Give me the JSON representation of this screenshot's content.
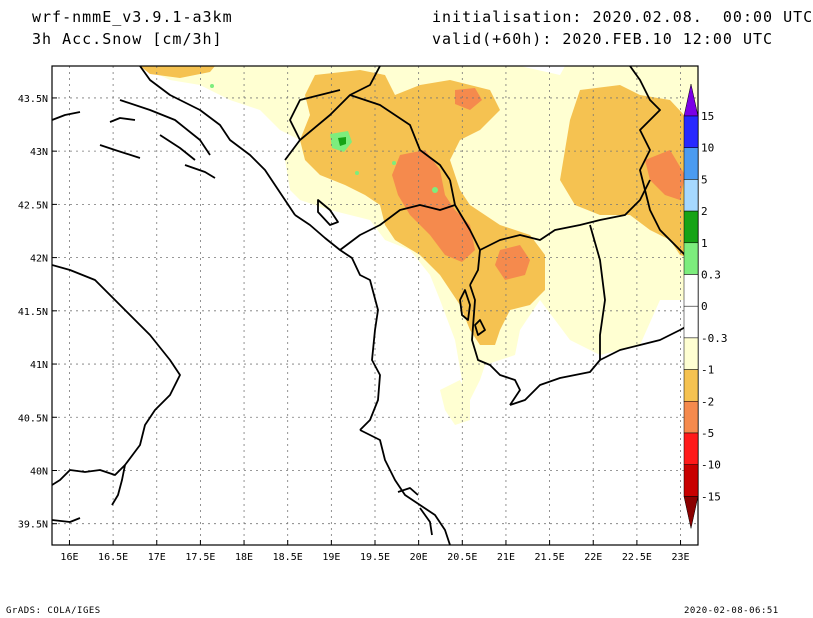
{
  "header": {
    "model": "wrf-nmmE_v3.9.1-a3km",
    "field": "3h Acc.Snow [cm/3h]",
    "init": "initialisation: 2020.02.08.  00:00 UTC",
    "valid": "valid(+60h): 2020.FEB.10 12:00 UTC"
  },
  "footer": {
    "left": "GrADS: COLA/IGES",
    "right": "2020-02-08-06:51"
  },
  "map": {
    "lon_range": [
      15.8,
      23.2
    ],
    "lat_range": [
      39.3,
      43.8
    ],
    "lon_ticks": [
      "16E",
      "16.5E",
      "17E",
      "17.5E",
      "18E",
      "18.5E",
      "19E",
      "19.5E",
      "20E",
      "20.5E",
      "21E",
      "21.5E",
      "22E",
      "22.5E",
      "23E"
    ],
    "lat_ticks": [
      "39.5N",
      "40N",
      "40.5N",
      "41N",
      "41.5N",
      "42N",
      "42.5N",
      "43N",
      "43.5N"
    ],
    "grid": "dotted"
  },
  "colorbar": {
    "labels": [
      "15",
      "10",
      "5",
      "2",
      "1",
      "0.3",
      "0",
      "-0.3",
      "-1",
      "-2",
      "-5",
      "-10",
      "-15"
    ],
    "colors": [
      "#7a00e6",
      "#2828ff",
      "#4b9bf0",
      "#a6d8ff",
      "#16a316",
      "#7ded7d",
      "#ffffff",
      "#ffffff",
      "#ffffd2",
      "#f5c251",
      "#f58a4d",
      "#ff1a1a",
      "#c80000",
      "#8a0000"
    ]
  }
}
